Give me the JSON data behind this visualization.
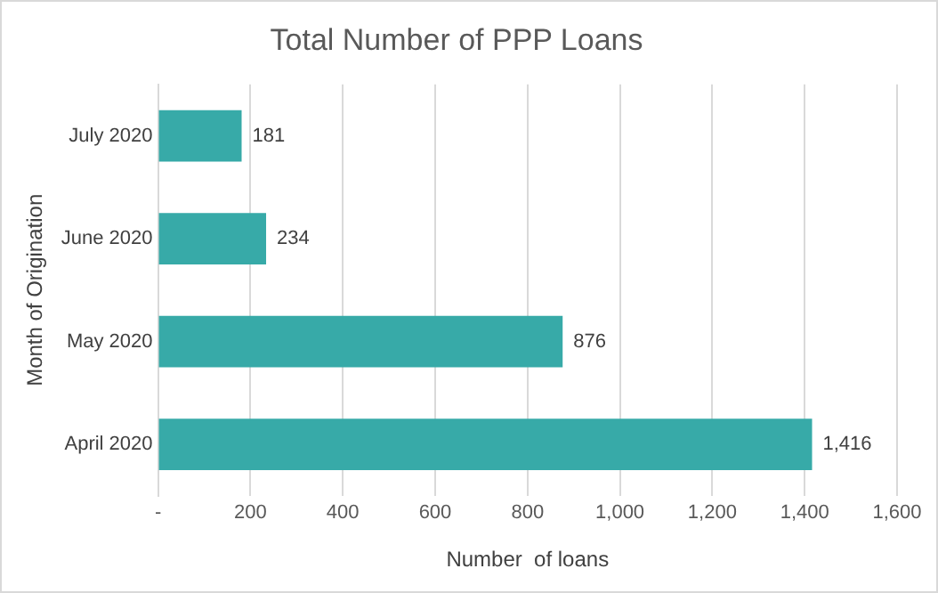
{
  "chart_data": {
    "type": "bar",
    "orientation": "horizontal",
    "title": "Total Number of PPP Loans",
    "xlabel": "Number  of loans",
    "ylabel": "Month of Origination",
    "categories": [
      "July 2020",
      "June 2020",
      "May 2020",
      "April 2020"
    ],
    "values": [
      181,
      234,
      876,
      1416
    ],
    "color": "#37aaa8",
    "value_labels": [
      "181",
      "234",
      "876",
      "1,416"
    ],
    "xlim": [
      0,
      1600
    ],
    "xticks": [
      {
        "value": 0,
        "label": "-"
      },
      200,
      400,
      600,
      800,
      {
        "value": 1000,
        "label": "1,000"
      },
      {
        "value": 1200,
        "label": "1,200"
      },
      {
        "value": 1400,
        "label": "1,400"
      },
      {
        "value": 1600,
        "label": "1,600"
      }
    ],
    "grid": "x",
    "legend": false
  }
}
